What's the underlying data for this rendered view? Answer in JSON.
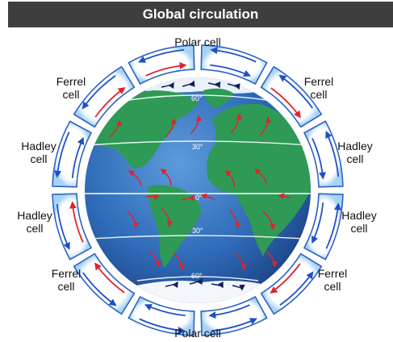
{
  "header": {
    "title": "Global circulation"
  },
  "cells": {
    "polar_top": "Polar cell",
    "polar_bottom": "Polar cell",
    "ferrel": "Ferrel\ncell",
    "hadley": "Hadley\ncell"
  },
  "latitudes": {
    "lat60": "60°",
    "lat30": "30°",
    "lat0": "0°"
  },
  "colors": {
    "ocean": "#2f6bb8",
    "land": "#2e9a55",
    "ice": "#ffffff",
    "ring": "#cfe6f8",
    "ring_stroke": "#2b63c5",
    "warm_arrow": "#e2222b",
    "cool_arrow": "#1f4fc8"
  }
}
